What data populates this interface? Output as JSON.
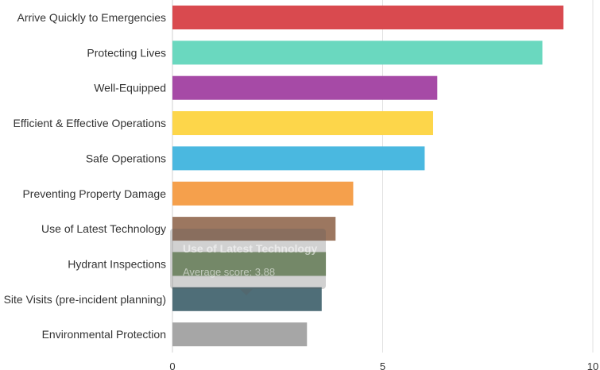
{
  "chart_data": {
    "type": "bar",
    "orientation": "horizontal",
    "title": "",
    "xlabel": "",
    "ylabel": "",
    "xlim": [
      0,
      10
    ],
    "x_ticks": [
      "0",
      "5",
      "10"
    ],
    "grid": true,
    "categories": [
      "Arrive Quickly to Emergencies",
      "Protecting Lives",
      "Well-Equipped",
      "Efficient & Effective Operations",
      "Safe Operations",
      "Preventing Property Damage",
      "Use of Latest Technology",
      "Hydrant Inspections",
      "Site Visits (pre-incident planning)",
      "Environmental Protection"
    ],
    "values": [
      9.3,
      8.8,
      6.3,
      6.2,
      6.0,
      4.3,
      3.88,
      3.65,
      3.55,
      3.2
    ],
    "colors": [
      "#d94a4f",
      "#6ad8bf",
      "#a64aa6",
      "#fdd64a",
      "#4ab8e0",
      "#f5a04c",
      "#9c7760",
      "#7e9a6e",
      "#4f6e78",
      "#a6a6a6"
    ]
  },
  "tooltip": {
    "title": "Use of Latest Technology",
    "value_text": "Average score: 3.88"
  }
}
